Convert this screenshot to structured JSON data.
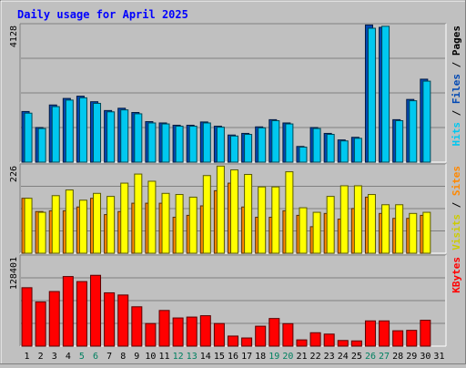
{
  "chart_data": {
    "type": "bar",
    "title": "Daily usage for April 2025",
    "categories": [
      "1",
      "2",
      "3",
      "4",
      "5",
      "6",
      "7",
      "8",
      "9",
      "10",
      "11",
      "12",
      "13",
      "14",
      "15",
      "16",
      "17",
      "18",
      "19",
      "20",
      "21",
      "22",
      "23",
      "24",
      "25",
      "26",
      "27",
      "28",
      "29",
      "30",
      "31"
    ],
    "weekend_days": [
      "5",
      "6",
      "12",
      "13",
      "19",
      "20",
      "26",
      "27"
    ],
    "panels": [
      {
        "ymax_label": "4128",
        "ylim": [
          0,
          4128
        ],
        "legend": [
          "Pages",
          "Files",
          "Hits"
        ],
        "series": [
          {
            "name": "Hits",
            "color": "#00c8f0",
            "values": [
              1500,
              1030,
              1700,
              1900,
              1970,
              1800,
              1540,
              1600,
              1480,
              1200,
              1170,
              1100,
              1100,
              1200,
              1070,
              800,
              850,
              1050,
              1270,
              1170,
              460,
              1030,
              850,
              650,
              730,
              4100,
              4160,
              1270,
              1880,
              2480,
              null
            ]
          },
          {
            "name": "Files",
            "color": "#0048b4",
            "values": [
              1550,
              1060,
              1750,
              1950,
              2020,
              1850,
              1580,
              1650,
              1520,
              1240,
              1200,
              1130,
              1130,
              1230,
              1100,
              830,
              880,
              1080,
              1300,
              1200,
              480,
              1060,
              880,
              680,
              760,
              4200,
              4128,
              1300,
              1920,
              2540,
              null
            ]
          }
        ]
      },
      {
        "ymax_label": "226",
        "ylim": [
          0,
          226
        ],
        "legend": [
          "Sites",
          "Visits"
        ],
        "series": [
          {
            "name": "Visits",
            "color": "#ffff00",
            "values": [
              145,
              108,
              152,
              167,
              140,
              158,
              150,
              185,
              209,
              190,
              158,
              155,
              148,
              205,
              230,
              220,
              208,
              175,
              175,
              215,
              120,
              108,
              150,
              178,
              178,
              155,
              128,
              128,
              105,
              108,
              null
            ]
          },
          {
            "name": "Sites",
            "color": "#ff8800",
            "values": [
              145,
              110,
              112,
              112,
              122,
              145,
              102,
              110,
              132,
              132,
              132,
              95,
              100,
              125,
              165,
              185,
              122,
              95,
              95,
              112,
              100,
              70,
              105,
              90,
              118,
              148,
              105,
              92,
              92,
              100,
              null
            ]
          }
        ]
      },
      {
        "ymax_label": "128401",
        "ylim": [
          0,
          128401
        ],
        "legend": [
          "KBytes"
        ],
        "series": [
          {
            "name": "KBytes",
            "color": "#ff0000",
            "values": [
              85800,
              64900,
              80200,
              102200,
              94800,
              104000,
              78300,
              75100,
              57800,
              33200,
              52400,
              41400,
              42700,
              44700,
              33200,
              14800,
              12000,
              29300,
              40600,
              33000,
              9200,
              19700,
              17700,
              8300,
              7700,
              37100,
              37100,
              22600,
              23200,
              38000,
              null
            ]
          }
        ]
      }
    ]
  }
}
